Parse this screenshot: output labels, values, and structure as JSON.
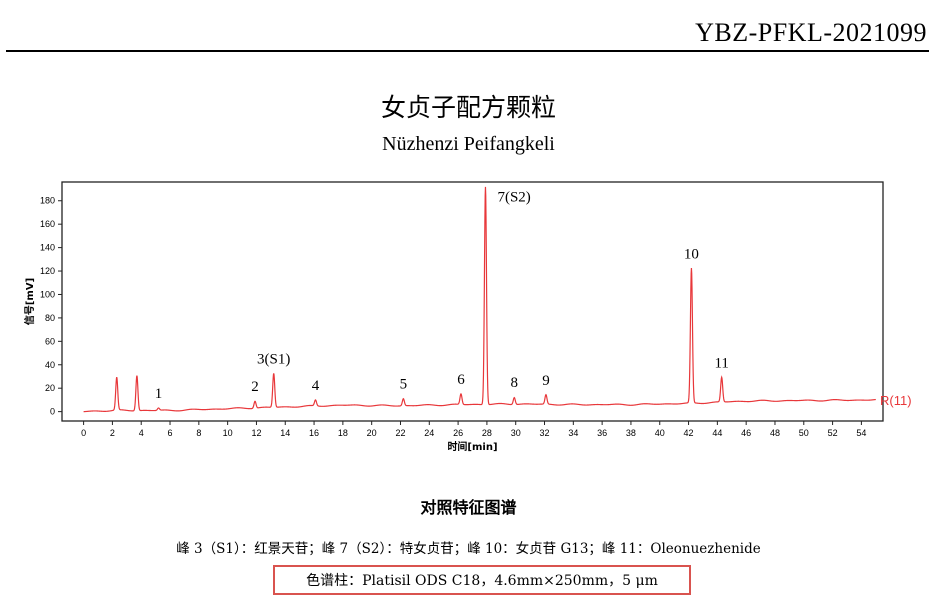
{
  "header": {
    "doc_code": "YBZ-PFKL-2021099"
  },
  "title": {
    "cn": "女贞子配方颗粒",
    "en": "Nüzhenzi Peifangkeli"
  },
  "caption": {
    "title": "对照特征图谱",
    "peak_note": "峰 3（S1）：红景天苷；峰 7（S2）：特女贞苷；峰 10：女贞苷 G13；峰 11：Oleonuezhenide",
    "column_info": "色谱柱：Platisil ODS C18，4.6mm×250mm，5 μm",
    "column_box_color": "#d9534f"
  },
  "chart_data": {
    "type": "line",
    "xlabel": "时间[min]",
    "ylabel": "信号[mV]",
    "xlim": [
      -1.5,
      55.5
    ],
    "ylim": [
      -8,
      196
    ],
    "xticks": [
      0,
      2,
      4,
      6,
      8,
      10,
      12,
      14,
      16,
      18,
      20,
      22,
      24,
      26,
      28,
      30,
      32,
      34,
      36,
      38,
      40,
      42,
      44,
      46,
      48,
      50,
      52,
      54
    ],
    "yticks": [
      0,
      20,
      40,
      60,
      80,
      100,
      120,
      140,
      160,
      180
    ],
    "series": [
      {
        "name": "R(11)",
        "color": "#e8373a"
      }
    ],
    "baseline": [
      [
        0,
        0
      ],
      [
        2,
        1
      ],
      [
        6,
        1
      ],
      [
        10,
        2.5
      ],
      [
        14,
        4
      ],
      [
        18,
        5.5
      ],
      [
        22,
        5
      ],
      [
        26,
        6
      ],
      [
        30,
        6.5
      ],
      [
        34,
        6
      ],
      [
        38,
        6
      ],
      [
        40,
        6.5
      ],
      [
        42,
        7
      ],
      [
        44,
        8
      ],
      [
        46,
        9
      ],
      [
        50,
        9.5
      ],
      [
        55,
        10
      ]
    ],
    "peaks": [
      {
        "x": 2.3,
        "height": 28,
        "label": ""
      },
      {
        "x": 3.7,
        "height": 30,
        "label": ""
      },
      {
        "x": 5.2,
        "height": 2,
        "label": "1"
      },
      {
        "x": 11.9,
        "height": 6,
        "label": "2"
      },
      {
        "x": 13.2,
        "height": 29,
        "label": "3(S1)"
      },
      {
        "x": 16.1,
        "height": 5,
        "label": "4"
      },
      {
        "x": 22.2,
        "height": 6,
        "label": "5"
      },
      {
        "x": 26.2,
        "height": 9,
        "label": "6"
      },
      {
        "x": 27.9,
        "height": 186,
        "label": "7(S2)"
      },
      {
        "x": 29.9,
        "height": 6,
        "label": "8"
      },
      {
        "x": 32.1,
        "height": 8,
        "label": "9"
      },
      {
        "x": 42.2,
        "height": 115,
        "label": "10"
      },
      {
        "x": 44.3,
        "height": 21,
        "label": "11"
      }
    ]
  }
}
